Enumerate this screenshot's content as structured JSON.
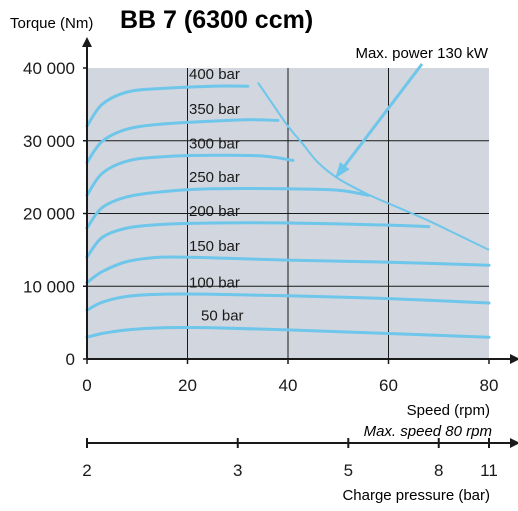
{
  "chart_data": {
    "type": "line",
    "title": "BB 7 (6300 ccm)",
    "ylabel": "Torque (Nm)",
    "xlabel": "Speed (rpm)",
    "xnote": "Max. speed 80 rpm",
    "xlim": [
      0,
      80
    ],
    "ylim": [
      0,
      40000
    ],
    "x_ticks": [
      "0",
      "20",
      "40",
      "60",
      "80"
    ],
    "y_ticks": [
      "0",
      "10 000",
      "20 000",
      "30 000",
      "40 000"
    ],
    "x_tick_values": [
      0,
      20,
      40,
      60,
      80
    ],
    "y_tick_values": [
      0,
      10000,
      20000,
      30000,
      40000
    ],
    "grid_x": [
      20,
      40,
      60
    ],
    "grid_y": [
      10000,
      20000,
      30000
    ],
    "colors": {
      "plot_bg": "#d2d6de",
      "curve": "#6ec6ea",
      "axis": "#1a1a1a",
      "arrow": "#6ec6ea"
    },
    "series": [
      {
        "name": "50 bar",
        "x": [
          0,
          3,
          8,
          15,
          25,
          40,
          60,
          80
        ],
        "y": [
          3000,
          3500,
          4000,
          4300,
          4300,
          4000,
          3500,
          3000
        ]
      },
      {
        "name": "100 bar",
        "x": [
          0,
          3,
          8,
          15,
          25,
          40,
          60,
          80
        ],
        "y": [
          6700,
          7800,
          8600,
          8900,
          8900,
          8700,
          8300,
          7700
        ]
      },
      {
        "name": "150 bar",
        "x": [
          0,
          3,
          8,
          15,
          25,
          40,
          60,
          80
        ],
        "y": [
          10500,
          12000,
          13400,
          14000,
          13900,
          13600,
          13300,
          12900
        ]
      },
      {
        "name": "200 bar",
        "x": [
          0,
          3,
          8,
          15,
          25,
          40,
          60,
          68
        ],
        "y": [
          14000,
          16700,
          18000,
          18500,
          18700,
          18700,
          18400,
          18200
        ]
      },
      {
        "name": "250 bar",
        "x": [
          0,
          3,
          8,
          15,
          25,
          40,
          50,
          56
        ],
        "y": [
          18000,
          20800,
          22300,
          23000,
          23400,
          23400,
          23200,
          22500
        ]
      },
      {
        "name": "300 bar",
        "x": [
          0,
          3,
          8,
          15,
          25,
          35,
          41
        ],
        "y": [
          22500,
          25500,
          27200,
          27800,
          28000,
          27900,
          27300
        ]
      },
      {
        "name": "350 bar",
        "x": [
          0,
          3,
          8,
          15,
          25,
          32,
          38
        ],
        "y": [
          27000,
          29900,
          31600,
          32300,
          32700,
          32900,
          32800
        ]
      },
      {
        "name": "400 bar",
        "x": [
          0,
          3,
          8,
          15,
          25,
          32
        ],
        "y": [
          32000,
          35000,
          36700,
          37200,
          37500,
          37500
        ]
      }
    ],
    "power_limit": {
      "label": "Max. power 130 kW",
      "x": [
        34,
        37,
        40,
        43,
        46,
        50,
        56,
        62,
        68,
        74,
        80
      ],
      "y": [
        38000,
        35000,
        32000,
        29500,
        27000,
        24800,
        22600,
        20800,
        19000,
        17000,
        15000
      ]
    },
    "charge_pressure_axis": {
      "label": "Charge pressure (bar)",
      "ticks": [
        {
          "label": "2",
          "speed": 0
        },
        {
          "label": "3",
          "speed": 30
        },
        {
          "label": "5",
          "speed": 52
        },
        {
          "label": "8",
          "speed": 70
        },
        {
          "label": "11",
          "speed": 80
        }
      ]
    }
  }
}
